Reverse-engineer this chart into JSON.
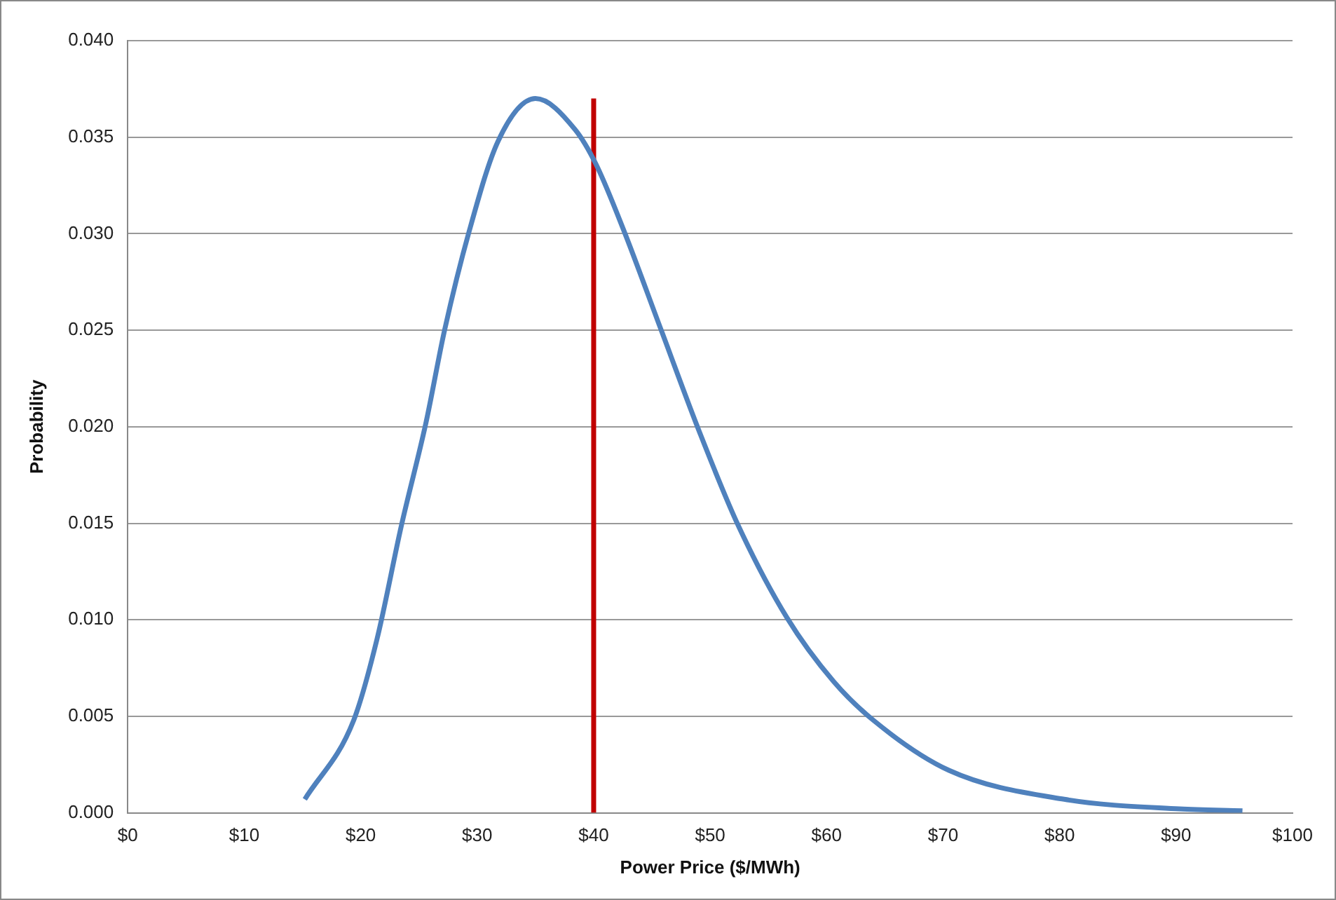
{
  "chart_data": {
    "type": "line",
    "xlabel": "Power Price ($/MWh)",
    "ylabel": "Probability",
    "xlim": [
      0,
      100
    ],
    "xticks": [
      {
        "value": 0,
        "label": "$0"
      },
      {
        "value": 10,
        "label": "$10"
      },
      {
        "value": 20,
        "label": "$20"
      },
      {
        "value": 30,
        "label": "$30"
      },
      {
        "value": 40,
        "label": "$40"
      },
      {
        "value": 50,
        "label": "$50"
      },
      {
        "value": 60,
        "label": "$60"
      },
      {
        "value": 70,
        "label": "$70"
      },
      {
        "value": 80,
        "label": "$80"
      },
      {
        "value": 90,
        "label": "$90"
      },
      {
        "value": 100,
        "label": "$100"
      }
    ],
    "ylim": [
      0,
      0.04
    ],
    "yticks": [
      {
        "value": 0,
        "label": "0.000"
      },
      {
        "value": 0.005,
        "label": "0.005"
      },
      {
        "value": 0.01,
        "label": "0.010"
      },
      {
        "value": 0.015,
        "label": "0.015"
      },
      {
        "value": 0.02,
        "label": "0.020"
      },
      {
        "value": 0.025,
        "label": "0.025"
      },
      {
        "value": 0.03,
        "label": "0.030"
      },
      {
        "value": 0.035,
        "label": "0.035"
      },
      {
        "value": 0.04,
        "label": "0.040"
      }
    ],
    "grid": "y",
    "legend": false,
    "marker": "none",
    "series": [
      {
        "color": "#4f81bd",
        "x": [
          15.2,
          19.4,
          21.4,
          23.5,
          25.6,
          27.2,
          29.3,
          31.8,
          35,
          38.4,
          40.2,
          42.5,
          45.8,
          49.1,
          52.4,
          56.6,
          60.6,
          64.0,
          70.5,
          80.4,
          90.3,
          95.7
        ],
        "values": [
          0.0007,
          0.0048,
          0.009,
          0.0149,
          0.0202,
          0.025,
          0.0301,
          0.0348,
          0.037,
          0.0354,
          0.0336,
          0.0303,
          0.025,
          0.0197,
          0.0149,
          0.0101,
          0.0068,
          0.0048,
          0.0022,
          0.0007,
          0.0002,
          0.0001
        ]
      },
      {
        "color": "#c00000",
        "x": [
          40,
          40
        ],
        "values": [
          0,
          0.037
        ]
      }
    ]
  }
}
